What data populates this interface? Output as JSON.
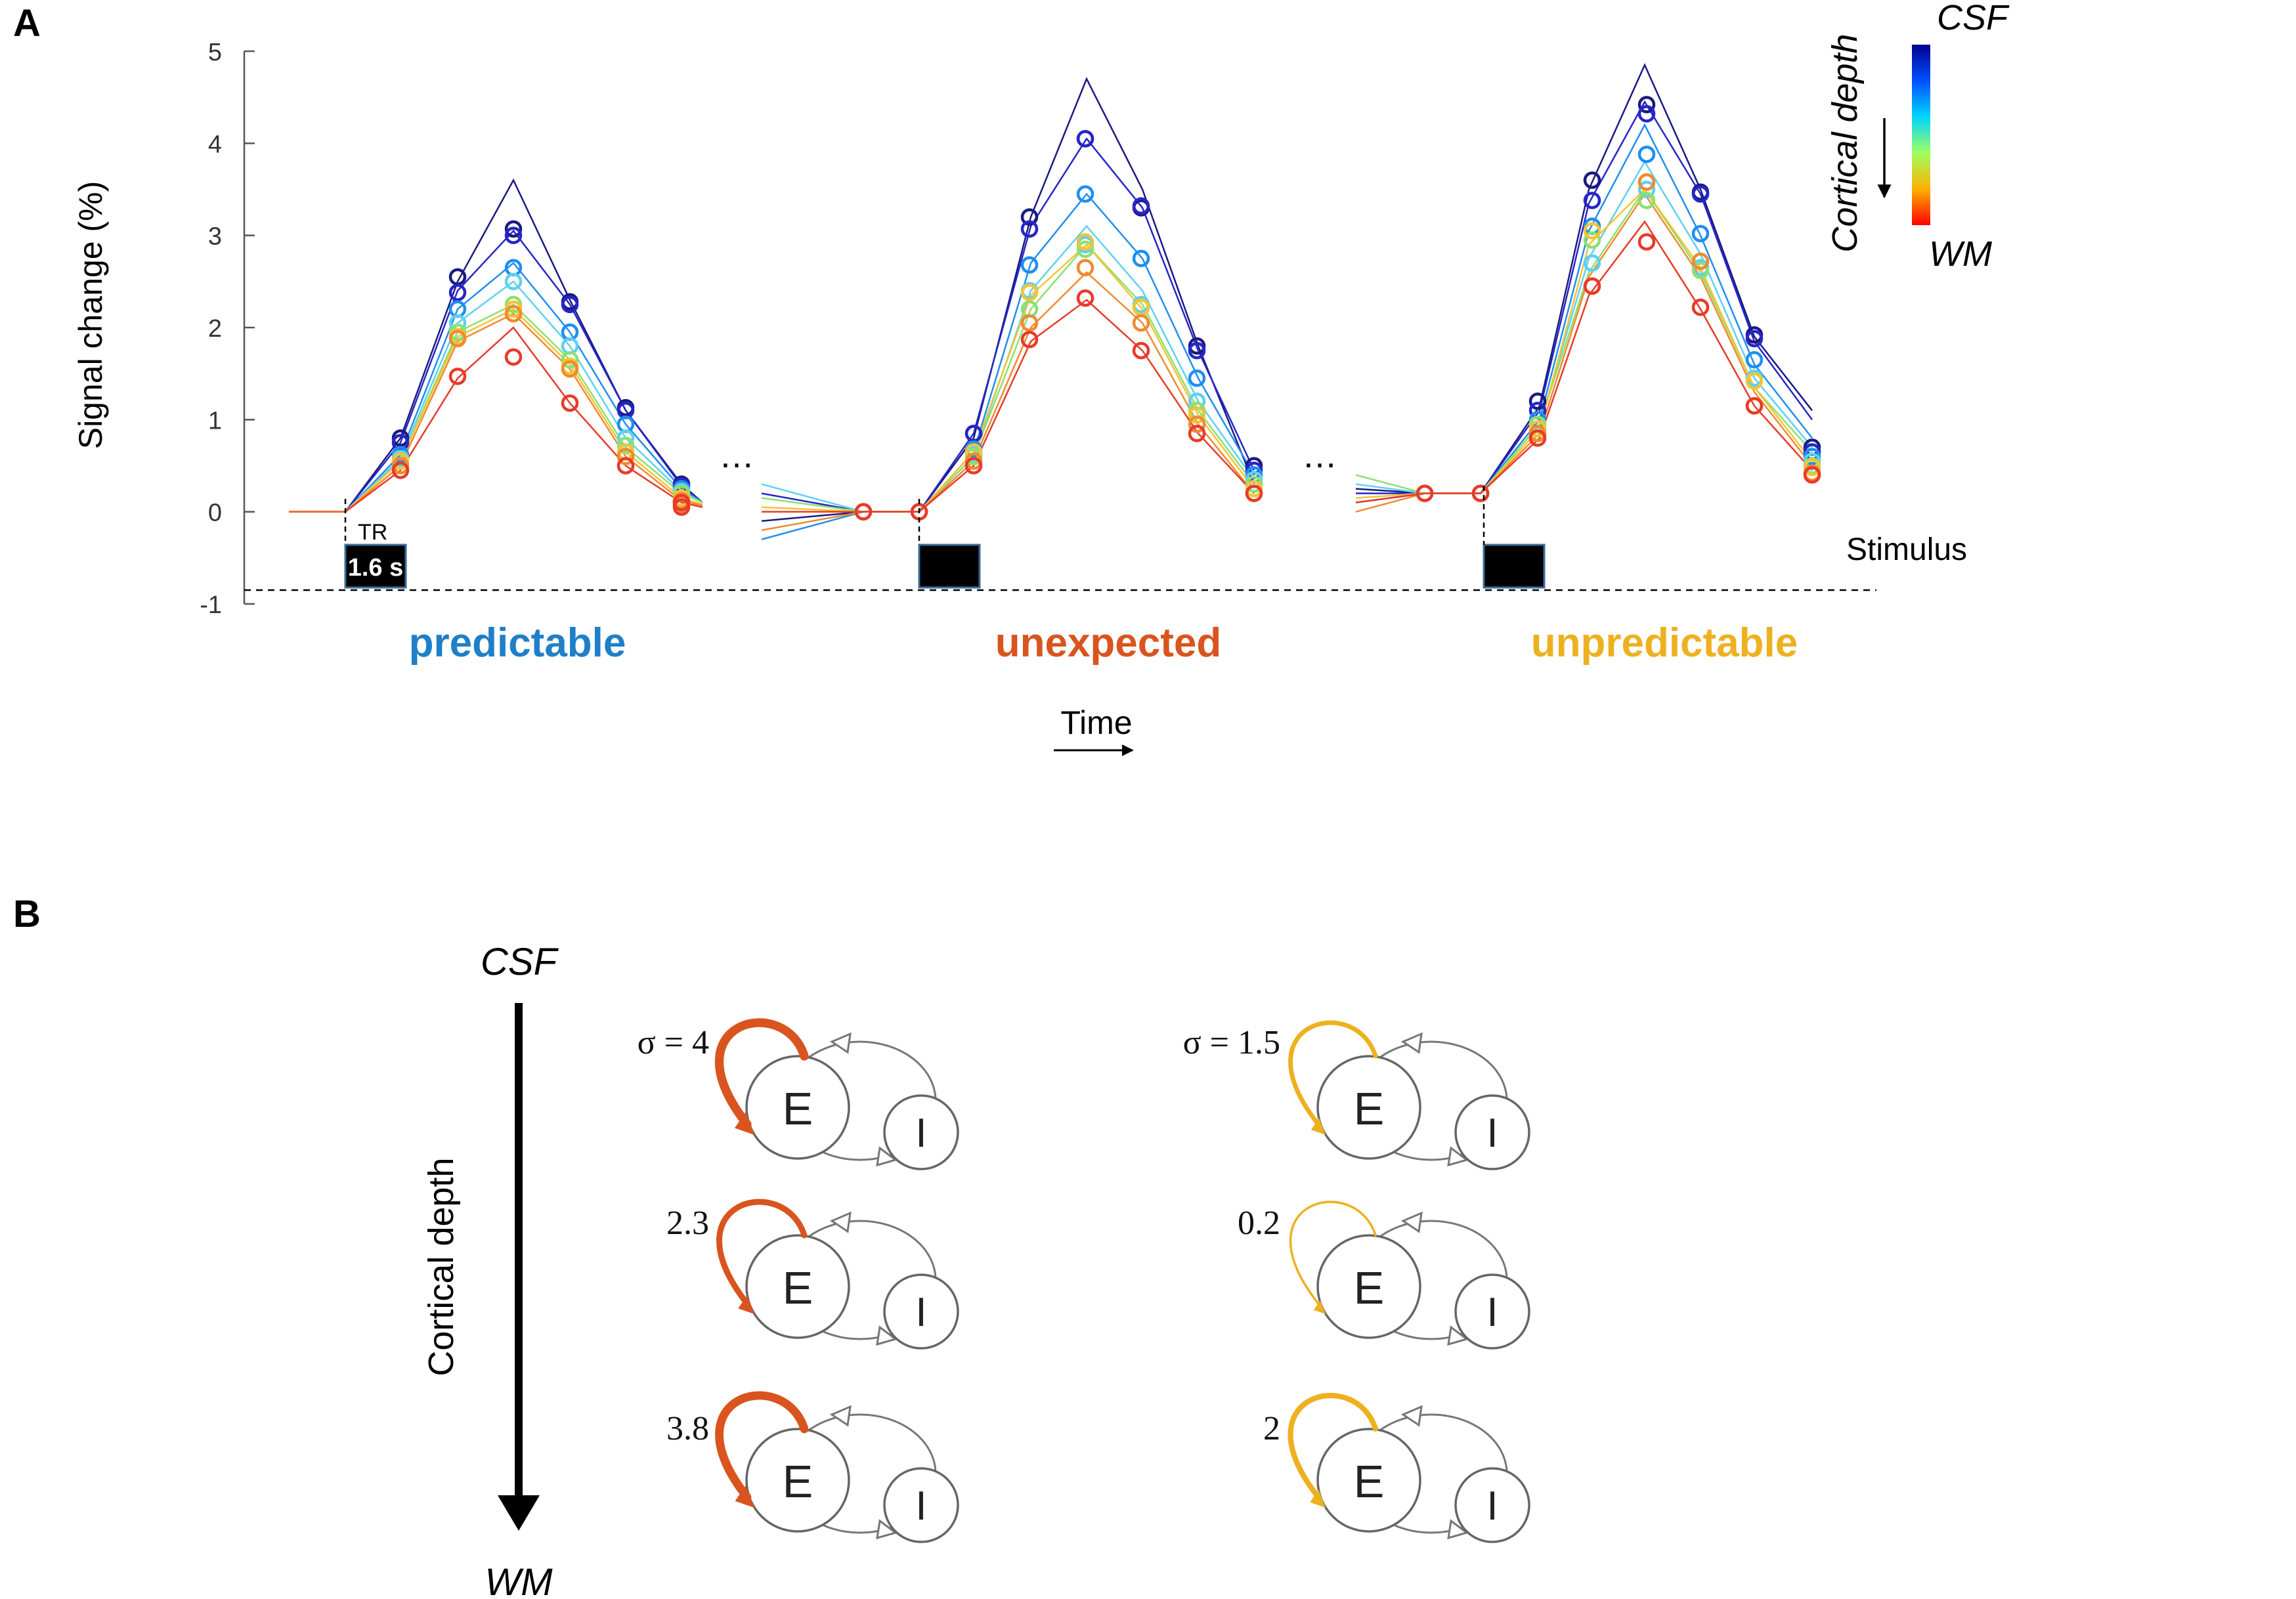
{
  "panel_labels": {
    "a": "A",
    "b": "B"
  },
  "chart_data": {
    "type": "line",
    "title": "",
    "xlabel": "Time",
    "ylabel": "Signal change (%)",
    "ylim": [
      -1,
      5
    ],
    "yticks": [
      "5",
      "4",
      "3",
      "2",
      "1",
      "0",
      "-1"
    ],
    "colorbar": {
      "title": "Cortical depth",
      "top_label": "CSF",
      "bottom_label": "WM"
    },
    "layer_colors": [
      "#1a1a80",
      "#2626c8",
      "#1f8ff0",
      "#5fd0f0",
      "#8de070",
      "#f2c533",
      "#f08a30",
      "#e83a2a"
    ],
    "tr_label": "TR",
    "tr_value": "1.6 s",
    "stimulus_label": "Stimulus",
    "ellipsis": "…",
    "conditions": [
      {
        "name": "predictable",
        "color": "#1f7fc8",
        "series": [
          [
            0,
            0,
            0.8,
            2.5,
            3.6,
            2.3,
            1.1,
            0.3,
            0.1
          ],
          [
            0,
            0,
            0.75,
            2.4,
            3.05,
            2.25,
            1.1,
            0.28,
            0.1
          ],
          [
            0,
            0,
            0.62,
            2.2,
            2.7,
            1.95,
            0.95,
            0.25,
            0.1
          ],
          [
            0,
            0,
            0.58,
            2.05,
            2.5,
            1.8,
            0.8,
            0.22,
            0.1
          ],
          [
            0,
            0,
            0.55,
            1.95,
            2.25,
            1.65,
            0.7,
            0.2,
            0.1
          ],
          [
            0,
            0,
            0.55,
            1.9,
            2.2,
            1.6,
            0.65,
            0.15,
            0.08
          ],
          [
            0,
            0,
            0.5,
            1.85,
            2.15,
            1.55,
            0.6,
            0.12,
            0.07
          ],
          [
            0,
            0,
            0.45,
            1.45,
            2.0,
            1.18,
            0.5,
            0.1,
            0.05
          ]
        ],
        "markers": [
          [
            0,
            0,
            0.8,
            2.55,
            3.07,
            2.28,
            1.13,
            0.3,
            0.12
          ],
          [
            0,
            0,
            0.75,
            2.38,
            3.0,
            2.25,
            1.1,
            0.28,
            0.1
          ],
          [
            0,
            0,
            0.62,
            2.2,
            2.65,
            1.95,
            0.95,
            0.25,
            0.1
          ],
          [
            0,
            0,
            0.58,
            2.05,
            2.5,
            1.8,
            0.8,
            0.22,
            0.1
          ],
          [
            0,
            0,
            0.55,
            1.95,
            2.25,
            1.65,
            0.72,
            0.2,
            0.1
          ],
          [
            0,
            0,
            0.55,
            1.9,
            2.2,
            1.58,
            0.65,
            0.15,
            0.08
          ],
          [
            0,
            0,
            0.5,
            1.88,
            2.15,
            1.55,
            0.6,
            0.12,
            0.07
          ],
          [
            0,
            0,
            0.45,
            1.47,
            1.68,
            1.18,
            0.5,
            0.1,
            0.05
          ]
        ]
      },
      {
        "name": "unexpected",
        "color": "#d9541e",
        "series": [
          [
            -0.1,
            0,
            0,
            0.8,
            3.2,
            4.7,
            3.5,
            1.8,
            0.3
          ],
          [
            0.2,
            0,
            0,
            0.85,
            3.1,
            4.05,
            3.3,
            1.75,
            0.45
          ],
          [
            -0.3,
            0,
            0,
            0.65,
            2.7,
            3.45,
            2.75,
            1.45,
            0.4
          ],
          [
            0.3,
            0,
            0,
            0.6,
            2.4,
            3.1,
            2.4,
            1.2,
            0.35
          ],
          [
            0.15,
            0,
            0,
            0.6,
            2.2,
            2.9,
            2.25,
            1.1,
            0.3
          ],
          [
            0.05,
            0,
            0,
            0.65,
            2.35,
            2.9,
            2.2,
            1.05,
            0.25
          ],
          [
            -0.2,
            0,
            0,
            0.55,
            2.0,
            2.6,
            2.05,
            0.95,
            0.2
          ],
          [
            0,
            0,
            0,
            0.5,
            1.85,
            2.3,
            1.75,
            0.85,
            0.2
          ]
        ],
        "markers": [
          [
            0,
            0,
            0,
            0.85,
            3.2,
            4.05,
            3.3,
            1.8,
            0.5
          ],
          [
            0,
            0,
            0,
            0.85,
            3.07,
            4.05,
            3.32,
            1.75,
            0.45
          ],
          [
            0,
            0,
            0,
            0.68,
            2.68,
            3.45,
            2.75,
            1.45,
            0.4
          ],
          [
            0,
            0,
            0,
            0.62,
            2.4,
            2.9,
            2.25,
            1.2,
            0.35
          ],
          [
            0,
            0,
            0,
            0.6,
            2.2,
            2.85,
            2.22,
            1.1,
            0.3
          ],
          [
            0,
            0,
            0,
            0.65,
            2.38,
            2.93,
            2.22,
            1.05,
            0.25
          ],
          [
            0,
            0,
            0,
            0.55,
            2.05,
            2.65,
            2.05,
            0.95,
            0.2
          ],
          [
            0,
            0,
            0,
            0.5,
            1.87,
            2.32,
            1.75,
            0.85,
            0.2
          ]
        ]
      },
      {
        "name": "unpredictable",
        "color": "#edb120",
        "series": [
          [
            0.25,
            0.2,
            0.2,
            1.15,
            3.5,
            4.85,
            3.5,
            1.9,
            1.1
          ],
          [
            0.2,
            0.2,
            0.2,
            1.1,
            3.35,
            4.45,
            3.45,
            1.85,
            1.0
          ],
          [
            0.1,
            0.2,
            0.2,
            1.0,
            3.05,
            4.2,
            3.0,
            1.6,
            0.8
          ],
          [
            0.3,
            0.2,
            0.2,
            0.95,
            2.75,
            3.8,
            2.8,
            1.45,
            0.7
          ],
          [
            0.4,
            0.2,
            0.2,
            0.95,
            2.6,
            3.5,
            2.6,
            1.35,
            0.65
          ],
          [
            0.15,
            0.2,
            0.2,
            0.9,
            2.9,
            3.5,
            2.65,
            1.35,
            0.55
          ],
          [
            0.0,
            0.2,
            0.2,
            0.85,
            2.55,
            3.45,
            2.55,
            1.3,
            0.5
          ],
          [
            0.1,
            0.2,
            0.2,
            0.8,
            2.35,
            3.15,
            2.2,
            1.15,
            0.45
          ]
        ],
        "markers": [
          [
            0,
            0.2,
            0.2,
            1.2,
            3.6,
            4.42,
            3.47,
            1.92,
            0.7
          ],
          [
            0,
            0.2,
            0.2,
            1.1,
            3.38,
            4.32,
            3.45,
            1.88,
            0.65
          ],
          [
            0,
            0.2,
            0.2,
            1.0,
            3.1,
            3.88,
            3.02,
            1.65,
            0.6
          ],
          [
            0,
            0.2,
            0.2,
            0.95,
            2.7,
            3.5,
            2.65,
            1.45,
            0.55
          ],
          [
            0,
            0.2,
            0.2,
            0.95,
            2.95,
            3.38,
            2.62,
            1.42,
            0.5
          ],
          [
            0,
            0.2,
            0.2,
            0.9,
            3.05,
            3.58,
            2.72,
            1.42,
            0.48
          ],
          [
            0,
            0.2,
            0.2,
            0.85,
            2.45,
            3.58,
            2.72,
            1.15,
            0.42
          ],
          [
            0,
            0.2,
            0.2,
            0.8,
            2.45,
            2.93,
            2.22,
            1.15,
            0.4
          ]
        ]
      }
    ]
  },
  "panel_b": {
    "depth_axis": {
      "top": "CSF",
      "label": "Cortical depth",
      "bottom": "WM"
    },
    "node_e": "E",
    "node_i": "I",
    "columns": [
      {
        "color": "#d9541e",
        "sigmas": [
          {
            "label": "σ = 4",
            "value": 4
          },
          {
            "label": "2.3",
            "value": 2.3
          },
          {
            "label": "3.8",
            "value": 3.8
          }
        ]
      },
      {
        "color": "#edb120",
        "sigmas": [
          {
            "label": "σ = 1.5",
            "value": 1.5
          },
          {
            "label": "0.2",
            "value": 0.2
          },
          {
            "label": "2",
            "value": 2
          }
        ]
      }
    ]
  }
}
